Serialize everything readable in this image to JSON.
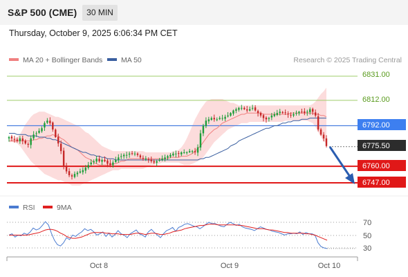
{
  "header": {
    "title": "S&P 500 (CME)",
    "interval": "30 MIN",
    "datetime": "Thursday, October 9, 2025 6:06:34 PM CET"
  },
  "colors": {
    "candle_up": "#1e9e3a",
    "candle_down": "#c62828",
    "bollinger_fill": "#fbd0d0",
    "ma20": "#f08080",
    "ma50": "#3a5fa0",
    "rsi": "#4a7bd0",
    "rsi_ma": "#e02020",
    "resistance": "#9fcc6a",
    "pivot": "#4a7fe0",
    "support": "#e01818",
    "last_price": "#2c2c2c",
    "arrow": "#2a5db0"
  },
  "chart_data": [
    {
      "type": "candlestick",
      "title": "S&P 500 (CME)",
      "legend": [
        {
          "name": "MA 20 + Bollinger Bands",
          "color": "#f08080"
        },
        {
          "name": "MA 50",
          "color": "#3a5fa0"
        }
      ],
      "legend_position": "top-left",
      "watermark": "Research © 2025 Trading Central",
      "x_tick_labels": [
        "Oct 8",
        "Oct 9",
        "Oct 10"
      ],
      "y_range": [
        6737,
        6836
      ],
      "levels": [
        {
          "label": "6831.00",
          "value": 6831.0,
          "role": "resistance"
        },
        {
          "label": "6812.00",
          "value": 6812.0,
          "role": "resistance"
        },
        {
          "label": "6792.00",
          "value": 6792.0,
          "role": "pivot"
        },
        {
          "label": "6775.50",
          "value": 6775.5,
          "role": "last"
        },
        {
          "label": "6760.00",
          "value": 6760.0,
          "role": "support"
        },
        {
          "label": "6747.00",
          "value": 6747.0,
          "role": "support"
        }
      ],
      "close": [
        6783,
        6782,
        6781,
        6780,
        6782,
        6780,
        6778,
        6777,
        6782,
        6785,
        6786,
        6788,
        6790,
        6794,
        6796,
        6794,
        6789,
        6783,
        6778,
        6772,
        6760,
        6756,
        6753,
        6752,
        6754,
        6755,
        6756,
        6757,
        6759,
        6761,
        6763,
        6764,
        6766,
        6764,
        6765,
        6764,
        6762,
        6761,
        6763,
        6765,
        6767,
        6768,
        6769,
        6769,
        6770,
        6770,
        6770,
        6769,
        6767,
        6766,
        6766,
        6765,
        6764,
        6763,
        6764,
        6765,
        6766,
        6767,
        6768,
        6769,
        6770,
        6770,
        6770,
        6771,
        6771,
        6771,
        6772,
        6772,
        6771,
        6775,
        6786,
        6792,
        6796,
        6797,
        6798,
        6797,
        6797,
        6798,
        6798,
        6799,
        6800,
        6802,
        6804,
        6805,
        6806,
        6806,
        6805,
        6804,
        6805,
        6806,
        6804,
        6802,
        6800,
        6798,
        6797,
        6798,
        6800,
        6801,
        6802,
        6803,
        6802,
        6802,
        6801,
        6800,
        6801,
        6802,
        6803,
        6803,
        6802,
        6803,
        6805,
        6803,
        6800,
        6789,
        6785,
        6782,
        6776
      ],
      "ma20": [
        6780,
        6780,
        6780,
        6780,
        6780,
        6780,
        6780,
        6780,
        6780,
        6781,
        6781,
        6782,
        6782,
        6783,
        6784,
        6784,
        6785,
        6784,
        6784,
        6782,
        6781,
        6779,
        6777,
        6775,
        6774,
        6773,
        6771,
        6769,
        6767,
        6766,
        6765,
        6763,
        6762,
        6761,
        6761,
        6761,
        6761,
        6761,
        6762,
        6762,
        6763,
        6764,
        6764,
        6765,
        6766,
        6766,
        6766,
        6766,
        6766,
        6766,
        6766,
        6766,
        6766,
        6766,
        6766,
        6766,
        6766,
        6766,
        6766,
        6767,
        6767,
        6767,
        6767,
        6768,
        6768,
        6768,
        6769,
        6770,
        6772,
        6774,
        6776,
        6779,
        6782,
        6785,
        6787,
        6789,
        6790,
        6792,
        6794,
        6795,
        6796,
        6797,
        6798,
        6799,
        6800,
        6801,
        6801,
        6802,
        6802,
        6802,
        6802,
        6802,
        6802,
        6801,
        6801,
        6801,
        6801,
        6801,
        6801,
        6801,
        6801,
        6801,
        6801,
        6802,
        6802,
        6802,
        6802,
        6802,
        6802,
        6802,
        6802,
        6802,
        6801,
        6801,
        6800,
        6800,
        6799
      ],
      "bb_upper": [
        6782,
        6782,
        6782,
        6783,
        6785,
        6789,
        6793,
        6796,
        6799,
        6801,
        6802,
        6803,
        6803,
        6803,
        6802,
        6801,
        6800,
        6799,
        6799,
        6798,
        6797,
        6796,
        6795,
        6794,
        6793,
        6792,
        6791,
        6789,
        6787,
        6786,
        6784,
        6782,
        6780,
        6778,
        6776,
        6775,
        6774,
        6773,
        6772,
        6772,
        6772,
        6772,
        6772,
        6772,
        6772,
        6772,
        6772,
        6772,
        6772,
        6772,
        6771,
        6771,
        6771,
        6771,
        6771,
        6771,
        6771,
        6771,
        6771,
        6771,
        6772,
        6772,
        6773,
        6775,
        6778,
        6782,
        6787,
        6792,
        6797,
        6801,
        6805,
        6808,
        6811,
        6812,
        6813,
        6813,
        6813,
        6813,
        6813,
        6812,
        6811,
        6810,
        6810,
        6809,
        6808,
        6808,
        6808,
        6808,
        6808,
        6808,
        6808,
        6808,
        6808,
        6808,
        6808,
        6808,
        6808,
        6808,
        6808,
        6808,
        6808,
        6808,
        6808,
        6808,
        6808,
        6808,
        6808,
        6808,
        6808,
        6808,
        6808,
        6809,
        6811,
        6814,
        6817,
        6819,
        6822
      ],
      "bb_lower": [
        6779,
        6779,
        6779,
        6778,
        6776,
        6773,
        6770,
        6767,
        6764,
        6762,
        6760,
        6758,
        6756,
        6754,
        6753,
        6752,
        6751,
        6750,
        6749,
        6749,
        6748,
        6747,
        6746,
        6745,
        6745,
        6745,
        6745,
        6746,
        6747,
        6748,
        6749,
        6750,
        6751,
        6752,
        6753,
        6754,
        6755,
        6756,
        6757,
        6757,
        6757,
        6758,
        6758,
        6758,
        6758,
        6758,
        6758,
        6758,
        6758,
        6758,
        6759,
        6760,
        6761,
        6761,
        6762,
        6762,
        6763,
        6763,
        6763,
        6763,
        6763,
        6763,
        6763,
        6762,
        6761,
        6761,
        6761,
        6762,
        6763,
        6764,
        6765,
        6767,
        6770,
        6773,
        6776,
        6779,
        6781,
        6783,
        6785,
        6787,
        6789,
        6790,
        6791,
        6792,
        6793,
        6794,
        6794,
        6794,
        6795,
        6795,
        6795,
        6795,
        6795,
        6795,
        6795,
        6795,
        6795,
        6795,
        6795,
        6795,
        6795,
        6796,
        6796,
        6796,
        6796,
        6796,
        6796,
        6796,
        6796,
        6796,
        6795,
        6794,
        6791,
        6787,
        6783,
        6780,
        6778
      ],
      "ma50": [
        6786,
        6786,
        6786,
        6785,
        6785,
        6785,
        6785,
        6784,
        6784,
        6784,
        6784,
        6783,
        6783,
        6783,
        6782,
        6782,
        6781,
        6781,
        6780,
        6779,
        6778,
        6777,
        6776,
        6775,
        6774,
        6773,
        6772,
        6771,
        6771,
        6770,
        6769,
        6769,
        6768,
        6768,
        6767,
        6767,
        6766,
        6766,
        6766,
        6765,
        6765,
        6765,
        6765,
        6765,
        6765,
        6765,
        6765,
        6765,
        6765,
        6765,
        6765,
        6765,
        6765,
        6765,
        6765,
        6765,
        6765,
        6765,
        6765,
        6765,
        6765,
        6765,
        6765,
        6765,
        6765,
        6765,
        6765,
        6765,
        6765,
        6765,
        6766,
        6766,
        6767,
        6767,
        6768,
        6769,
        6770,
        6771,
        6772,
        6773,
        6774,
        6776,
        6777,
        6778,
        6780,
        6781,
        6782,
        6783,
        6784,
        6785,
        6786,
        6787,
        6788,
        6789,
        6790,
        6790,
        6791,
        6792,
        6792,
        6793,
        6794,
        6794,
        6795,
        6795,
        6796,
        6796,
        6796,
        6797,
        6797,
        6797,
        6798,
        6798,
        6798,
        6798,
        6798,
        6798,
        6798
      ]
    },
    {
      "type": "line",
      "legend": [
        {
          "name": "RSI",
          "color": "#4a7bd0"
        },
        {
          "name": "9MA",
          "color": "#e02020"
        }
      ],
      "legend_position": "top-left",
      "y_tick_labels": [
        "70",
        "50",
        "30"
      ],
      "y_range": [
        24,
        80
      ],
      "x_tick_labels": [
        "Oct 8",
        "Oct 9",
        "Oct 10"
      ],
      "series": [
        {
          "name": "RSI",
          "values": [
            50,
            52,
            47,
            50,
            49,
            53,
            51,
            55,
            61,
            58,
            60,
            65,
            71,
            66,
            53,
            42,
            35,
            33,
            38,
            46,
            43,
            50,
            48,
            52,
            55,
            60,
            57,
            59,
            55,
            50,
            52,
            55,
            48,
            53,
            47,
            51,
            57,
            52,
            50,
            46,
            52,
            55,
            58,
            52,
            50,
            47,
            55,
            59,
            54,
            50,
            46,
            52,
            57,
            59,
            62,
            56,
            62,
            64,
            67,
            68,
            66,
            64,
            63,
            60,
            63,
            67,
            70,
            68,
            68,
            66,
            64,
            63,
            67,
            70,
            68,
            65,
            67,
            63,
            61,
            60,
            59,
            57,
            60,
            63,
            61,
            59,
            58,
            56,
            55,
            54,
            52,
            50,
            52,
            52,
            53,
            52,
            55,
            51,
            54,
            52,
            52,
            50,
            38,
            32,
            30,
            29
          ]
        },
        {
          "name": "9MA",
          "values": [
            50,
            50,
            50,
            50,
            50,
            50,
            50,
            51,
            52,
            53,
            54,
            56,
            58,
            59,
            59,
            58,
            56,
            53,
            51,
            48,
            46,
            45,
            45,
            46,
            47,
            49,
            51,
            53,
            54,
            54,
            54,
            54,
            53,
            53,
            52,
            52,
            52,
            51,
            51,
            51,
            51,
            52,
            53,
            53,
            52,
            51,
            52,
            53,
            53,
            52,
            51,
            51,
            52,
            53,
            55,
            56,
            57,
            58,
            60,
            61,
            62,
            63,
            64,
            65,
            65,
            66,
            67,
            67,
            67,
            66,
            66,
            66,
            66,
            66,
            66,
            66,
            65,
            65,
            64,
            63,
            62,
            61,
            60,
            60,
            60,
            59,
            58,
            58,
            57,
            56,
            55,
            54,
            54,
            53,
            53,
            53,
            53,
            53,
            52,
            52,
            51,
            50,
            48,
            46,
            44,
            42
          ]
        }
      ]
    }
  ],
  "price_labels": {
    "r1": "6831.00",
    "r2": "6812.00",
    "pivot": "6792.00",
    "last": "6775.50",
    "s1": "6760.00",
    "s2": "6747.00"
  },
  "legend": {
    "ma20_bb": "MA 20 + Bollinger Bands",
    "ma50": "MA 50",
    "watermark": "Research © 2025 Trading Central",
    "rsi": "RSI",
    "rsi_ma": "9MA"
  },
  "rsi_ticks": {
    "t70": "70",
    "t50": "50",
    "t30": "30"
  },
  "x_ticks": {
    "oct8": "Oct 8",
    "oct9": "Oct 9",
    "oct10": "Oct 10"
  }
}
